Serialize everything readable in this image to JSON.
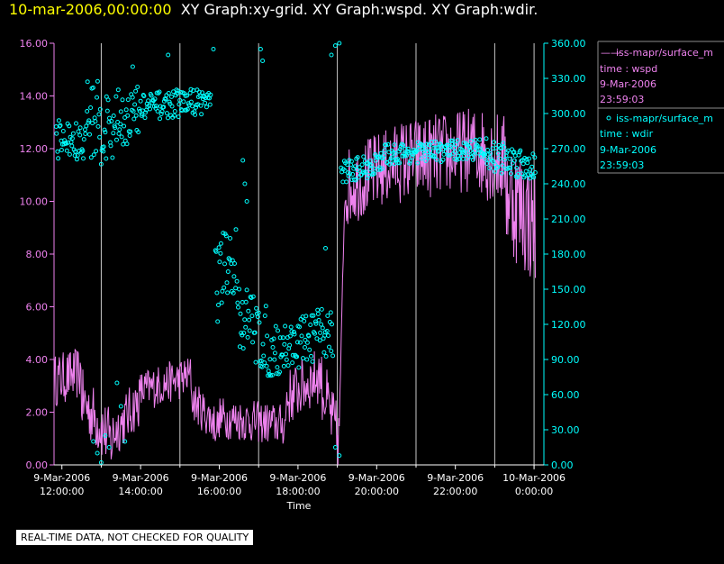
{
  "header": {
    "date": "10-mar-2006,00:00:00",
    "graphs": "XY Graph:xy-grid.  XY Graph:wspd.  XY Graph:wdir."
  },
  "chart_data": {
    "type": "line",
    "title": "10-mar-2006,00:00:00  XY Graph:xy-grid.  XY Graph:wspd.  XY Graph:wdir.",
    "xlabel": "Time",
    "ylabel_left": "",
    "ylabel_right": "",
    "x_range_hours": [
      11.8,
      24.25
    ],
    "x_ticks": [
      {
        "hour": 12,
        "line1": "9-Mar-2006",
        "line2": "12:00:00"
      },
      {
        "hour": 14,
        "line1": "9-Mar-2006",
        "line2": "14:00:00"
      },
      {
        "hour": 16,
        "line1": "9-Mar-2006",
        "line2": "16:00:00"
      },
      {
        "hour": 18,
        "line1": "9-Mar-2006",
        "line2": "18:00:00"
      },
      {
        "hour": 20,
        "line1": "9-Mar-2006",
        "line2": "20:00:00"
      },
      {
        "hour": 22,
        "line1": "9-Mar-2006",
        "line2": "22:00:00"
      },
      {
        "hour": 24,
        "line1": "10-Mar-2006",
        "line2": "0:00:00"
      }
    ],
    "grid_hours": [
      13,
      15,
      17,
      19,
      21,
      23,
      24
    ],
    "y_left": {
      "min": 0,
      "max": 16,
      "ticks": [
        "0.00",
        "2.00",
        "4.00",
        "6.00",
        "8.00",
        "10.00",
        "12.00",
        "14.00",
        "16.00"
      ]
    },
    "y_right": {
      "min": 0,
      "max": 360,
      "ticks": [
        "0.00",
        "30.00",
        "60.00",
        "90.00",
        "120.00",
        "150.00",
        "180.00",
        "210.00",
        "240.00",
        "270.00",
        "300.00",
        "330.00",
        "360.00"
      ]
    },
    "series": [
      {
        "name": "wspd",
        "style": "line",
        "color": "#ee82ee",
        "axis": "left",
        "legend": [
          "iss-mapr/surface_m",
          "time : wspd",
          "9-Mar-2006",
          "23:59:03"
        ],
        "segments": [
          {
            "h0": 11.8,
            "h1": 12.5,
            "v0": 3.2,
            "v1": 3.5,
            "noise": 1.0
          },
          {
            "h0": 12.5,
            "h1": 13.3,
            "v0": 2.5,
            "v1": 0.8,
            "noise": 1.2
          },
          {
            "h0": 13.3,
            "h1": 14.0,
            "v0": 1.2,
            "v1": 2.5,
            "noise": 1.0
          },
          {
            "h0": 14.0,
            "h1": 15.3,
            "v0": 2.8,
            "v1": 3.4,
            "noise": 0.8
          },
          {
            "h0": 15.3,
            "h1": 16.0,
            "v0": 2.5,
            "v1": 1.4,
            "noise": 0.8
          },
          {
            "h0": 16.0,
            "h1": 17.7,
            "v0": 1.8,
            "v1": 1.5,
            "noise": 0.8
          },
          {
            "h0": 17.7,
            "h1": 18.6,
            "v0": 2.5,
            "v1": 3.5,
            "noise": 1.1
          },
          {
            "h0": 18.6,
            "h1": 19.05,
            "v0": 3.0,
            "v1": 0.8,
            "noise": 1.3
          },
          {
            "h0": 19.05,
            "h1": 19.2,
            "v0": 1.5,
            "v1": 11.0,
            "noise": 0.4
          },
          {
            "h0": 19.2,
            "h1": 20.5,
            "v0": 10.5,
            "v1": 11.5,
            "noise": 1.5
          },
          {
            "h0": 20.5,
            "h1": 22.5,
            "v0": 11.5,
            "v1": 12.0,
            "noise": 1.6
          },
          {
            "h0": 22.5,
            "h1": 23.3,
            "v0": 12.0,
            "v1": 11.5,
            "noise": 1.8
          },
          {
            "h0": 23.3,
            "h1": 24.05,
            "v0": 10.5,
            "v1": 9.0,
            "noise": 2.4
          }
        ]
      },
      {
        "name": "wdir",
        "style": "scatter",
        "color": "#00ffff",
        "axis": "right",
        "legend": [
          "iss-mapr/surface_m",
          "time : wdir",
          "9-Mar-2006",
          "23:59:03"
        ],
        "segments": [
          {
            "h0": 11.85,
            "h1": 12.6,
            "v0": 280,
            "v1": 272,
            "noise": 18
          },
          {
            "h0": 12.6,
            "h1": 13.3,
            "v0": 300,
            "v1": 285,
            "noise": 35
          },
          {
            "h0": 13.3,
            "h1": 14.0,
            "v0": 295,
            "v1": 300,
            "noise": 25
          },
          {
            "h0": 14.0,
            "h1": 15.8,
            "v0": 305,
            "v1": 312,
            "noise": 12
          },
          {
            "h0": 15.9,
            "h1": 16.5,
            "v0": 155,
            "v1": 170,
            "noise": 40
          },
          {
            "h0": 16.5,
            "h1": 17.2,
            "v0": 130,
            "v1": 105,
            "noise": 30
          },
          {
            "h0": 17.2,
            "h1": 18.9,
            "v0": 95,
            "v1": 115,
            "noise": 22
          },
          {
            "h0": 19.1,
            "h1": 20.2,
            "v0": 250,
            "v1": 258,
            "noise": 10
          },
          {
            "h0": 20.2,
            "h1": 22.8,
            "v0": 265,
            "v1": 270,
            "noise": 9
          },
          {
            "h0": 22.8,
            "h1": 24.05,
            "v0": 265,
            "v1": 255,
            "noise": 14
          }
        ],
        "extra_points": [
          {
            "h": 12.8,
            "v": 20
          },
          {
            "h": 12.9,
            "v": 10
          },
          {
            "h": 13.0,
            "v": 2
          },
          {
            "h": 13.2,
            "v": 15
          },
          {
            "h": 13.4,
            "v": 70
          },
          {
            "h": 13.5,
            "v": 50
          },
          {
            "h": 13.6,
            "v": 20
          },
          {
            "h": 13.1,
            "v": 25
          },
          {
            "h": 18.85,
            "v": 350
          },
          {
            "h": 18.95,
            "v": 358
          },
          {
            "h": 19.05,
            "v": 360
          },
          {
            "h": 17.1,
            "v": 345
          },
          {
            "h": 17.05,
            "v": 355
          },
          {
            "h": 18.7,
            "v": 185
          },
          {
            "h": 18.95,
            "v": 15
          },
          {
            "h": 19.05,
            "v": 8
          },
          {
            "h": 15.85,
            "v": 355
          },
          {
            "h": 16.6,
            "v": 260
          },
          {
            "h": 16.65,
            "v": 240
          },
          {
            "h": 16.7,
            "v": 225
          },
          {
            "h": 14.7,
            "v": 350
          },
          {
            "h": 13.8,
            "v": 340
          }
        ]
      }
    ]
  },
  "legend": {
    "entries": [
      {
        "marker": "—",
        "source": "iss-mapr/surface_m",
        "series": "time : wspd",
        "date": "9-Mar-2006",
        "time": "23:59:03",
        "color": "#ee82ee"
      },
      {
        "marker": "o",
        "source": "iss-mapr/surface_m",
        "series": "time : wdir",
        "date": "9-Mar-2006",
        "time": "23:59:03",
        "color": "#00ffff"
      }
    ]
  },
  "footer": {
    "qc_note": "REAL-TIME DATA, NOT CHECKED FOR QUALITY"
  },
  "colors": {
    "background": "#000000",
    "header_date": "#ffff00",
    "header_text": "#ffffff",
    "left_axis": "#ee82ee",
    "right_axis": "#00ffff",
    "grid": "#c8c8c8",
    "axis_text": "#ffffff"
  }
}
